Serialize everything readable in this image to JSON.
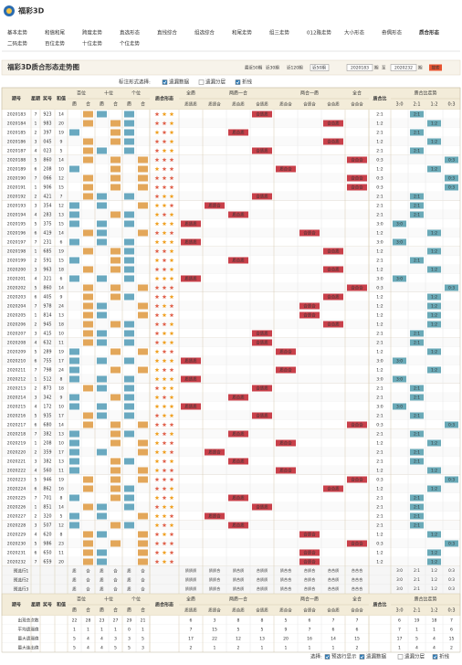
{
  "header": {
    "brand": "福彩3D"
  },
  "nav": {
    "items": [
      [
        "基本走势",
        "和值和尾",
        "跨度走势",
        "直选形态",
        "直线综合",
        "组选综合",
        "和尾走势",
        "组三走势",
        "012路走势",
        "大小形态",
        "奇偶形态",
        "质合形态"
      ],
      [
        "二码走势",
        "百位走势",
        "十位走势",
        "个位走势"
      ]
    ],
    "active": "质合形态"
  },
  "title": "福彩3D质合形态走势图",
  "filters": {
    "recent": [
      "最近50期",
      "近30期",
      "近120期"
    ],
    "select": "近50期",
    "from": "2020183",
    "from_unit": "期",
    "to_label": "至",
    "to": "2020232",
    "to_unit": "期",
    "search": "搜索"
  },
  "options": {
    "label": "标注形式选择:",
    "items": [
      {
        "text": "遗漏数据",
        "checked": true
      },
      {
        "text": "遗漏分层",
        "checked": false
      },
      {
        "text": "折线",
        "checked": true
      }
    ]
  },
  "table": {
    "headers": {
      "period": "期号",
      "week": "星期",
      "number": "奖号",
      "sum": "和值",
      "positions": [
        "百位",
        "十位",
        "个位"
      ],
      "prime": "质",
      "composite": "合",
      "form": "质合形态",
      "groups": [
        "全质",
        "两质一合",
        "两合一质",
        "全合"
      ],
      "patterns": [
        "质质质",
        "质质合",
        "质合质",
        "合质质",
        "质合合",
        "合质合",
        "合合质",
        "合合合"
      ],
      "ratio": "质合比",
      "trend": "质合比走势",
      "ratios": [
        "3:0",
        "2:1",
        "1:2",
        "0:3"
      ]
    },
    "rows": [
      [
        "2020183",
        "7",
        "923",
        "14",
        "合质质",
        "2:1"
      ],
      [
        "2020184",
        "1",
        "983",
        "20",
        "合合质",
        "1:2"
      ],
      [
        "2020185",
        "2",
        "397",
        "19",
        "质合质",
        "2:1"
      ],
      [
        "2020186",
        "3",
        "045",
        "9",
        "合合质",
        "1:2"
      ],
      [
        "2020187",
        "4",
        "023",
        "5",
        "合质质",
        "2:1"
      ],
      [
        "2020188",
        "5",
        "860",
        "14",
        "合合合",
        "0:3"
      ],
      [
        "2020189",
        "6",
        "208",
        "10",
        "质合合",
        "1:2"
      ],
      [
        "2020190",
        "7",
        "066",
        "12",
        "合合合",
        "0:3"
      ],
      [
        "2020191",
        "1",
        "906",
        "15",
        "合合合",
        "0:3"
      ],
      [
        "2020192",
        "2",
        "421",
        "7",
        "合质质",
        "2:1"
      ],
      [
        "2020193",
        "3",
        "354",
        "12",
        "质质合",
        "2:1"
      ],
      [
        "2020194",
        "4",
        "283",
        "13",
        "质合质",
        "2:1"
      ],
      [
        "2020195",
        "5",
        "375",
        "15",
        "质质质",
        "3:0"
      ],
      [
        "2020196",
        "6",
        "419",
        "14",
        "合质合",
        "1:2"
      ],
      [
        "2020197",
        "7",
        "231",
        "6",
        "质质质",
        "3:0"
      ],
      [
        "2020198",
        "1",
        "685",
        "19",
        "合合质",
        "1:2"
      ],
      [
        "2020199",
        "2",
        "591",
        "15",
        "质合质",
        "2:1"
      ],
      [
        "2020200",
        "3",
        "963",
        "18",
        "合合质",
        "1:2"
      ],
      [
        "2020201",
        "4",
        "321",
        "6",
        "质质质",
        "3:0"
      ],
      [
        "2020202",
        "5",
        "860",
        "14",
        "合合合",
        "0:3"
      ],
      [
        "2020203",
        "6",
        "405",
        "9",
        "合合质",
        "1:2"
      ],
      [
        "2020204",
        "7",
        "978",
        "24",
        "合质合",
        "1:2"
      ],
      [
        "2020205",
        "1",
        "814",
        "13",
        "合质合",
        "1:2"
      ],
      [
        "2020206",
        "2",
        "945",
        "18",
        "合合质",
        "1:2"
      ],
      [
        "2020207",
        "3",
        "415",
        "10",
        "合质质",
        "2:1"
      ],
      [
        "2020208",
        "4",
        "632",
        "11",
        "合质质",
        "2:1"
      ],
      [
        "2020209",
        "5",
        "289",
        "19",
        "质合合",
        "1:2"
      ],
      [
        "2020210",
        "6",
        "755",
        "17",
        "质质质",
        "3:0"
      ],
      [
        "2020211",
        "7",
        "798",
        "24",
        "质合合",
        "1:2"
      ],
      [
        "2020212",
        "1",
        "512",
        "8",
        "质质质",
        "3:0"
      ],
      [
        "2020213",
        "2",
        "873",
        "18",
        "合质质",
        "2:1"
      ],
      [
        "2020214",
        "3",
        "342",
        "9",
        "质合质",
        "2:1"
      ],
      [
        "2020215",
        "4",
        "172",
        "10",
        "质质质",
        "3:0"
      ],
      [
        "2020216",
        "5",
        "935",
        "17",
        "合质质",
        "2:1"
      ],
      [
        "2020217",
        "6",
        "680",
        "14",
        "合合合",
        "0:3"
      ],
      [
        "2020218",
        "7",
        "382",
        "13",
        "质合质",
        "2:1"
      ],
      [
        "2020219",
        "1",
        "208",
        "10",
        "质合合",
        "1:2"
      ],
      [
        "2020220",
        "2",
        "359",
        "17",
        "质质合",
        "2:1"
      ],
      [
        "2020221",
        "3",
        "382",
        "13",
        "质合质",
        "2:1"
      ],
      [
        "2020222",
        "4",
        "560",
        "11",
        "质合合",
        "1:2"
      ],
      [
        "2020223",
        "5",
        "946",
        "19",
        "合合合",
        "0:3"
      ],
      [
        "2020224",
        "6",
        "862",
        "16",
        "合合质",
        "1:2"
      ],
      [
        "2020225",
        "7",
        "701",
        "8",
        "质合质",
        "2:1"
      ],
      [
        "2020226",
        "1",
        "851",
        "14",
        "合质质",
        "2:1"
      ],
      [
        "2020227",
        "2",
        "320",
        "5",
        "质质合",
        "2:1"
      ],
      [
        "2020228",
        "3",
        "507",
        "12",
        "质合质",
        "2:1"
      ],
      [
        "2020229",
        "4",
        "620",
        "8",
        "合质合",
        "1:2"
      ],
      [
        "2020230",
        "5",
        "986",
        "23",
        "合合合",
        "0:3"
      ],
      [
        "2020231",
        "6",
        "650",
        "11",
        "合质合",
        "1:2"
      ],
      [
        "2020232",
        "7",
        "659",
        "20",
        "合质合",
        "1:2"
      ]
    ],
    "preselect": [
      "预选行1",
      "预选行2",
      "预选行3"
    ],
    "stats": [
      {
        "name": "出现总次数",
        "values": [
          22,
          28,
          23,
          27,
          29,
          21,
          6,
          3,
          8,
          8,
          5,
          6,
          7,
          7,
          6,
          19,
          18,
          7
        ]
      },
      {
        "name": "平均遗漏值",
        "values": [
          1,
          1,
          1,
          1,
          0,
          1,
          7,
          15,
          5,
          5,
          9,
          7,
          6,
          6,
          7,
          1,
          1,
          6
        ]
      },
      {
        "name": "最大遗漏值",
        "values": [
          5,
          4,
          4,
          3,
          3,
          5,
          17,
          22,
          12,
          13,
          20,
          16,
          14,
          15,
          17,
          5,
          4,
          15
        ]
      },
      {
        "name": "最大连出值",
        "values": [
          5,
          4,
          4,
          5,
          5,
          3,
          2,
          1,
          2,
          1,
          1,
          1,
          1,
          2,
          1,
          4,
          4,
          2
        ]
      }
    ]
  },
  "footer": {
    "label": "选择:",
    "items": [
      {
        "text": "预选行显示",
        "checked": true
      },
      {
        "text": "遗漏数据",
        "checked": true
      },
      {
        "text": "遗漏分层",
        "checked": false
      },
      {
        "text": "折线",
        "checked": true
      }
    ]
  }
}
